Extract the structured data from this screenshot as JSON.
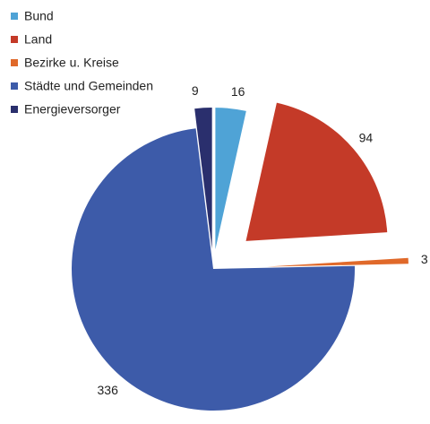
{
  "chart_data": {
    "type": "pie",
    "categories": [
      "Bund",
      "Land",
      "Bezirke u. Kreise",
      "Städte und Gemeinden",
      "Energieversorger"
    ],
    "values": [
      16,
      94,
      3,
      336,
      9
    ],
    "colors": [
      "#4fa3d6",
      "#c43a28",
      "#e0692a",
      "#3d5ba9",
      "#2a2f6d"
    ],
    "legend": "top-left"
  }
}
